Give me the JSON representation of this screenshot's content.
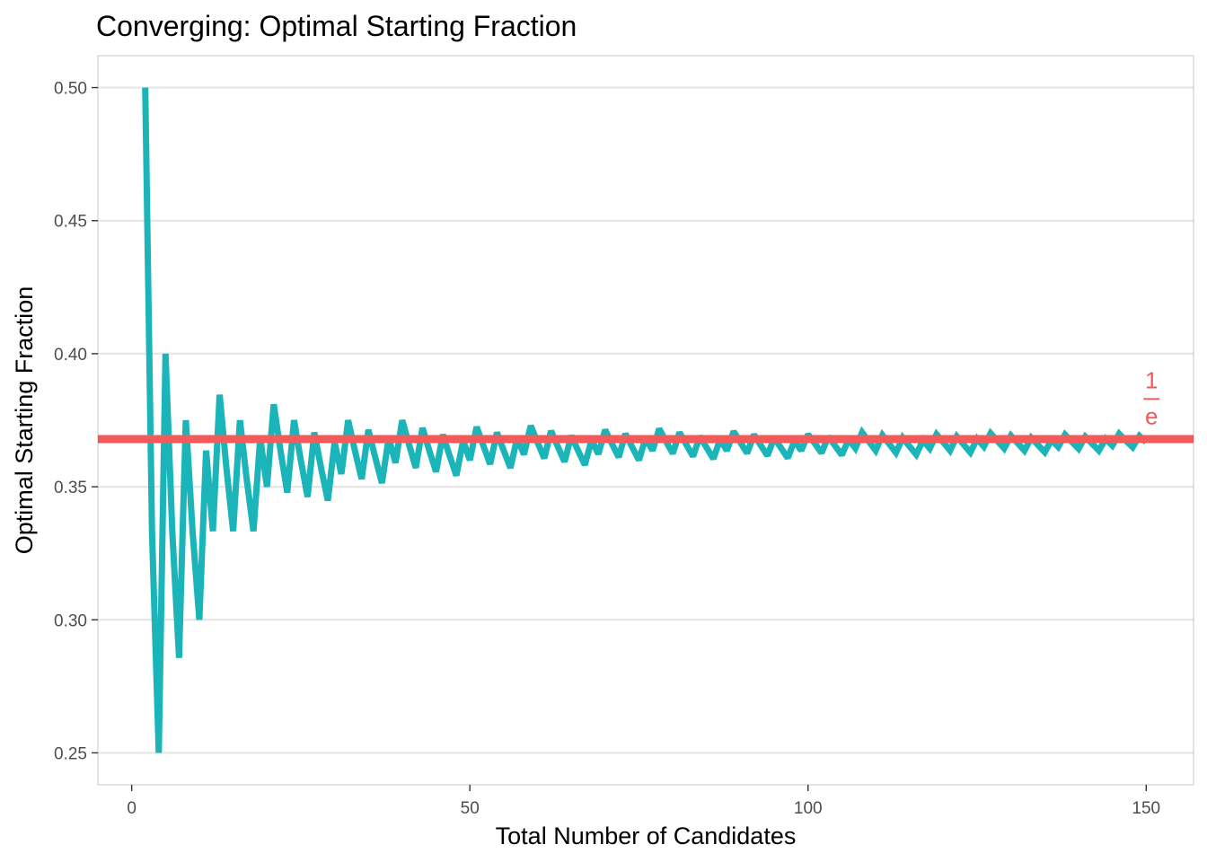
{
  "chart_data": {
    "type": "line",
    "title": "Converging: Optimal Starting Fraction",
    "xlabel": "Total Number of Candidates",
    "ylabel": "Optimal Starting Fraction",
    "xlim": [
      -5,
      157
    ],
    "ylim": [
      0.238,
      0.512
    ],
    "x_ticks": [
      "0",
      "50",
      "100",
      "150"
    ],
    "y_ticks": [
      "0.50",
      "0.45",
      "0.40",
      "0.35",
      "0.30",
      "0.25"
    ],
    "grid": true,
    "legend": "none",
    "series": [
      {
        "color": "#1BB5B9",
        "x": [
          2,
          3,
          4,
          5,
          6,
          7,
          8,
          9,
          10,
          11,
          12,
          13,
          14,
          15,
          16,
          17,
          18,
          19,
          20,
          21,
          22,
          23,
          24,
          25,
          26,
          27,
          28,
          29,
          30,
          31,
          32,
          33,
          34,
          35,
          36,
          37,
          38,
          39,
          40,
          41,
          42,
          43,
          44,
          45,
          46,
          47,
          48,
          49,
          50,
          51,
          52,
          53,
          54,
          55,
          56,
          57,
          58,
          59,
          60,
          61,
          62,
          63,
          64,
          65,
          66,
          67,
          68,
          69,
          70,
          71,
          72,
          73,
          74,
          75,
          76,
          77,
          78,
          79,
          80,
          81,
          82,
          83,
          84,
          85,
          86,
          87,
          88,
          89,
          90,
          91,
          92,
          93,
          94,
          95,
          96,
          97,
          98,
          99,
          100,
          101,
          102,
          103,
          104,
          105,
          106,
          107,
          108,
          109,
          110,
          111,
          112,
          113,
          114,
          115,
          116,
          117,
          118,
          119,
          120,
          121,
          122,
          123,
          124,
          125,
          126,
          127,
          128,
          129,
          130,
          131,
          132,
          133,
          134,
          135,
          136,
          137,
          138,
          139,
          140,
          141,
          142,
          143,
          144,
          145,
          146,
          147,
          148,
          149,
          150
        ],
        "y": [
          0.5,
          0.3333,
          0.25,
          0.4,
          0.3333,
          0.2857,
          0.375,
          0.3333,
          0.3,
          0.3636,
          0.3333,
          0.3846,
          0.3571,
          0.3333,
          0.375,
          0.3529,
          0.3333,
          0.3684,
          0.35,
          0.381,
          0.3636,
          0.3478,
          0.375,
          0.36,
          0.3462,
          0.3704,
          0.3571,
          0.3448,
          0.3667,
          0.3548,
          0.375,
          0.3636,
          0.3529,
          0.3714,
          0.3611,
          0.3514,
          0.3684,
          0.359,
          0.375,
          0.3659,
          0.3571,
          0.3721,
          0.3636,
          0.3556,
          0.3696,
          0.3617,
          0.3542,
          0.3673,
          0.36,
          0.3725,
          0.3654,
          0.3585,
          0.3704,
          0.3636,
          0.3571,
          0.3684,
          0.3621,
          0.3729,
          0.3667,
          0.3607,
          0.371,
          0.3651,
          0.3594,
          0.3692,
          0.3636,
          0.3582,
          0.3676,
          0.3623,
          0.3714,
          0.3662,
          0.3611,
          0.3699,
          0.3649,
          0.36,
          0.3684,
          0.3636,
          0.3718,
          0.3671,
          0.3625,
          0.3704,
          0.3659,
          0.3614,
          0.369,
          0.3647,
          0.3605,
          0.3678,
          0.3636,
          0.3708,
          0.3667,
          0.3626,
          0.3696,
          0.3656,
          0.3617,
          0.3684,
          0.3646,
          0.3608,
          0.3673,
          0.3636,
          0.3697,
          0.3663,
          0.3627,
          0.3689,
          0.3654,
          0.3619,
          0.3679,
          0.3645,
          0.3704,
          0.367,
          0.3636,
          0.3694,
          0.3661,
          0.3628,
          0.3684,
          0.3652,
          0.3621,
          0.3675,
          0.3644,
          0.3697,
          0.3667,
          0.3636,
          0.3689,
          0.3659,
          0.3629,
          0.368,
          0.3651,
          0.3701,
          0.3672,
          0.3644,
          0.3692,
          0.3664,
          0.3636,
          0.3684,
          0.3657,
          0.363,
          0.3676,
          0.365,
          0.3696,
          0.3669,
          0.3643,
          0.3688,
          0.3662,
          0.3636,
          0.368,
          0.3655,
          0.3699,
          0.3673,
          0.3649,
          0.3691,
          0.3667
        ]
      }
    ],
    "reference_line": {
      "y": 0.3679,
      "color": "#F55A5A"
    },
    "annotation": {
      "numerator": "1",
      "denominator": "e",
      "x": 150,
      "y": 0.383,
      "color": "#F55A5A"
    }
  }
}
